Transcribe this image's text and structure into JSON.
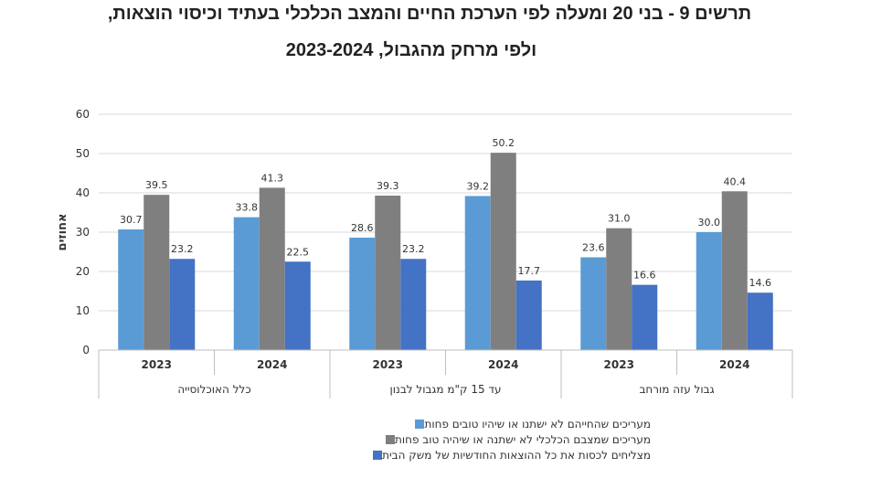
{
  "title": {
    "line1": "תרשים 9 - בני 20 ומעלה לפי הערכת החיים והמצב הכלכלי בעתיד וכיסוי הוצאות,",
    "line2": "ולפי מרחק מהגבול, 2023-2024"
  },
  "chart_data": {
    "type": "bar",
    "ylabel": "אחוזים",
    "ylim": [
      0,
      60
    ],
    "yticks": [
      0,
      10,
      20,
      30,
      40,
      50,
      60
    ],
    "grid": true,
    "legend_position": "bottom",
    "groups": [
      {
        "label": "כלל האוכלוסייה",
        "years": [
          "2023",
          "2024"
        ]
      },
      {
        "label": "עד 15 ק\"מ מגבול לבנון",
        "years": [
          "2023",
          "2024"
        ]
      },
      {
        "label": "גבול עזה מורחב",
        "years": [
          "2023",
          "2024"
        ]
      }
    ],
    "categories": [
      "2023",
      "2024",
      "2023",
      "2024",
      "2023",
      "2024"
    ],
    "series": [
      {
        "name": "מעריכים שהחייהם לא ישתנו או שיהיו טובים פחות",
        "color": "#5b9bd5",
        "values": [
          30.7,
          33.8,
          28.6,
          39.2,
          23.6,
          30.0
        ],
        "labels": [
          "30.7",
          "33.8",
          "28.6",
          "39.2",
          "23.6",
          "30.0"
        ]
      },
      {
        "name": "מעריכים שמצבם הכלכלי לא ישתנה או שיהיה טוב פחות",
        "color": "#7f7f7f",
        "values": [
          39.5,
          41.3,
          39.3,
          50.2,
          31.0,
          40.4
        ],
        "labels": [
          "39.5",
          "41.3",
          "39.3",
          "50.2",
          "31.0",
          "40.4"
        ]
      },
      {
        "name": "מצליחים  לכסות את כל ההוצאות החודשיות של משק הבית",
        "color": "#4472c4",
        "values": [
          23.2,
          22.5,
          23.2,
          17.7,
          16.6,
          14.6
        ],
        "labels": [
          "23.2",
          "22.5",
          "23.2",
          "17.7",
          "16.6",
          "14.6"
        ]
      }
    ]
  }
}
